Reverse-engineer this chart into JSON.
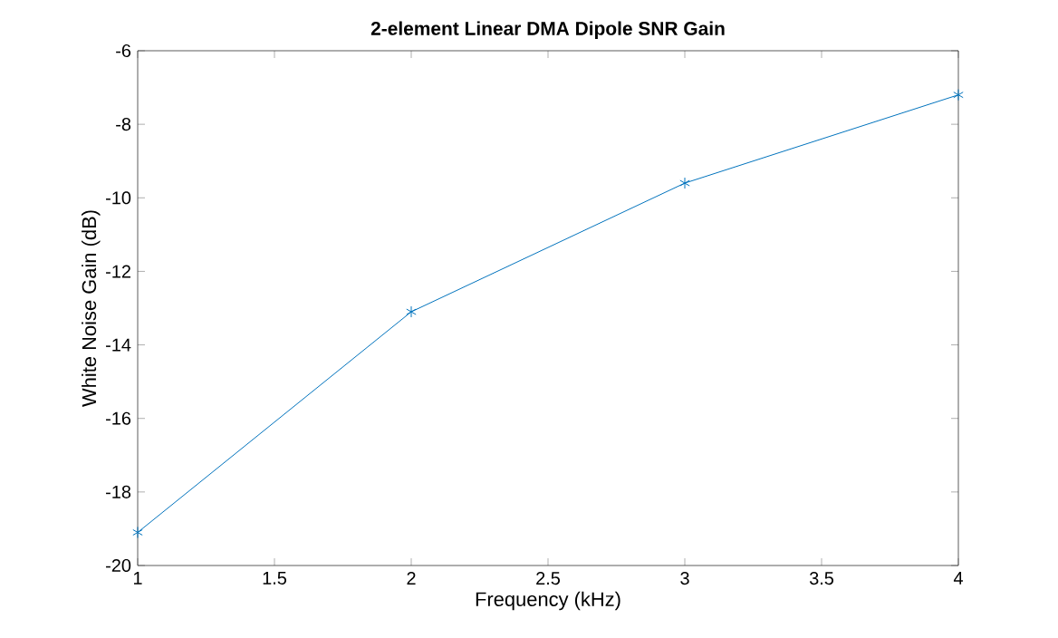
{
  "chart_data": {
    "type": "line",
    "title": "2-element Linear DMA Dipole SNR Gain",
    "xlabel": "Frequency (kHz)",
    "ylabel": "White Noise Gain (dB)",
    "x": [
      1,
      2,
      3,
      4
    ],
    "series": [
      {
        "color": "#0072bd",
        "values": [
          -19.1,
          -13.1,
          -9.6,
          -7.2
        ]
      }
    ],
    "xlim": [
      1,
      4
    ],
    "xticks": [
      1,
      1.5,
      2,
      2.5,
      3,
      3.5,
      4
    ],
    "ylim": [
      -20,
      -6
    ],
    "yticks": [
      -20,
      -18,
      -16,
      -14,
      -12,
      -10,
      -8,
      -6
    ],
    "marker": "cross",
    "line_style": "solid"
  }
}
